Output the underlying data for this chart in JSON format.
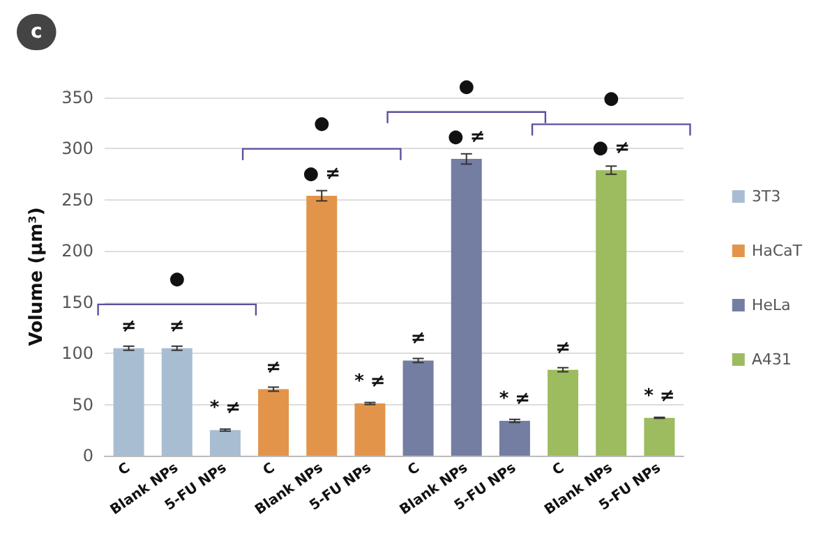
{
  "chart_data": {
    "type": "bar",
    "title": "c",
    "ylabel": "Volume (µm³)",
    "categories": [
      "C",
      "Blank NPs",
      "5-FU NPs",
      "C",
      "Blank NPs",
      "5-FU NPs",
      "C",
      "Blank NPs",
      "5-FU NPs",
      "C",
      "Blank NPs",
      "5-FU NPs"
    ],
    "series": [
      {
        "name": "3T3",
        "color": "#a9bdd2",
        "values": [
          105,
          105,
          25,
          null,
          null,
          null,
          null,
          null,
          null,
          null,
          null,
          null
        ],
        "errors": [
          2,
          2,
          1,
          null,
          null,
          null,
          null,
          null,
          null,
          null,
          null,
          null
        ],
        "value_labels": [
          "≠",
          "≠",
          "* ≠",
          null,
          null,
          null,
          null,
          null,
          null,
          null,
          null,
          null
        ]
      },
      {
        "name": "HaCaT",
        "color": "#e2954a",
        "values": [
          null,
          null,
          null,
          65,
          254,
          51,
          null,
          null,
          null,
          null,
          null,
          null
        ],
        "errors": [
          null,
          null,
          null,
          2,
          5,
          1,
          null,
          null,
          null,
          null,
          null,
          null
        ],
        "value_labels": [
          null,
          null,
          null,
          "≠",
          "● ≠",
          "* ≠",
          null,
          null,
          null,
          null,
          null,
          null
        ]
      },
      {
        "name": "HeLa",
        "color": "#747ea3",
        "values": [
          null,
          null,
          null,
          null,
          null,
          null,
          93,
          290,
          34,
          null,
          null,
          null
        ],
        "errors": [
          null,
          null,
          null,
          null,
          null,
          null,
          2,
          5,
          1.5,
          null,
          null,
          null
        ],
        "value_labels": [
          null,
          null,
          null,
          null,
          null,
          null,
          "≠",
          "● ≠",
          "* ≠",
          null,
          null,
          null
        ]
      },
      {
        "name": "A431",
        "color": "#9dbb5f",
        "values": [
          null,
          null,
          null,
          null,
          null,
          null,
          null,
          null,
          null,
          84,
          279,
          37
        ],
        "errors": [
          null,
          null,
          null,
          null,
          null,
          null,
          null,
          null,
          null,
          2,
          4,
          0.5
        ],
        "value_labels": [
          null,
          null,
          null,
          null,
          null,
          null,
          null,
          null,
          null,
          "≠",
          "● ≠",
          "* ≠"
        ]
      }
    ],
    "annotations": [
      "●",
      "●",
      "●",
      "●"
    ],
    "ylim": [
      0,
      350
    ],
    "yticks": [
      0,
      50,
      100,
      150,
      200,
      250,
      300,
      350
    ],
    "grid": "y",
    "legend": "right"
  }
}
